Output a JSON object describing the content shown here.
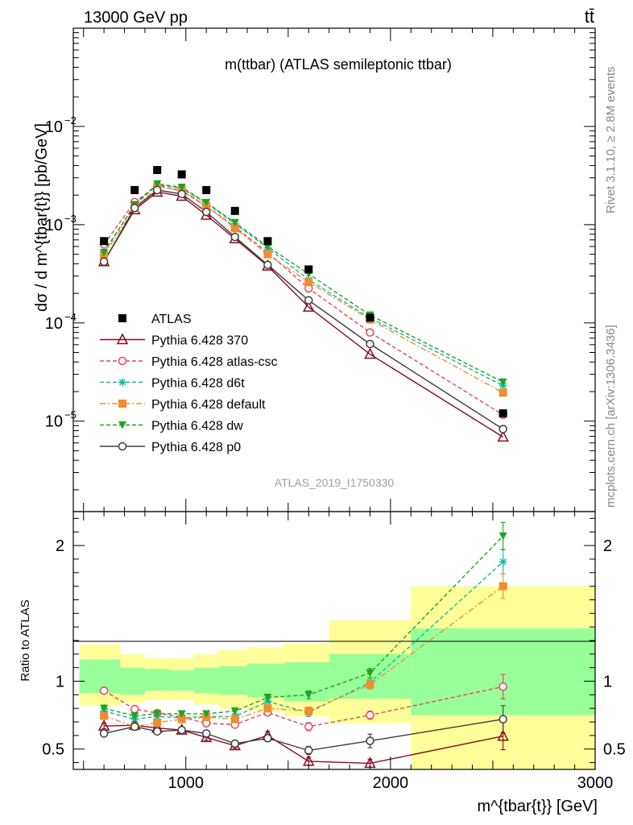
{
  "header": {
    "left": "13000 GeV pp",
    "right": "tt̄"
  },
  "side_text": {
    "rivet": "Rivet 3.1.10, ≥ 2.8M events",
    "mcplots": "mcplots.cern.ch [arXiv:1306.3436]"
  },
  "chart_data": [
    {
      "type": "scatter",
      "title": "m(ttbar) (ATLAS semileptonic ttbar)",
      "ylabel": "dσ / d m^{tbar{t}} [pb/GeV]",
      "xlabel": "m^{tbar{t}} [GeV]",
      "watermark": "ATLAS_2019_I1750330",
      "yscale": "log",
      "xlim": [
        450,
        3000
      ],
      "ylim": [
        1.2e-06,
        0.1
      ],
      "yticks": [
        {
          "value": 0.01,
          "base": "10",
          "exp": "−2"
        },
        {
          "value": 0.001,
          "base": "10",
          "exp": "−3"
        },
        {
          "value": 0.0001,
          "base": "10",
          "exp": "−4"
        },
        {
          "value": 1e-05,
          "base": "10",
          "exp": "−5"
        }
      ],
      "x": [
        600,
        750,
        860,
        980,
        1100,
        1240,
        1400,
        1600,
        1900,
        2550
      ],
      "legend_position": "lower-left",
      "series": [
        {
          "name": "ATLAS",
          "color": "#000000",
          "marker": "square",
          "line": "none",
          "values": [
            0.00068,
            0.00225,
            0.0036,
            0.00325,
            0.00225,
            0.00138,
            0.00068,
            0.00035,
            0.000113,
            1.2e-05
          ]
        },
        {
          "name": "Pythia 6.428 370",
          "color": "#8b0a1e",
          "marker": "open-triangle",
          "line": "solid",
          "values": [
            0.00042,
            0.00142,
            0.00215,
            0.00195,
            0.00125,
            0.00072,
            0.00038,
            0.000145,
            4.8e-05,
            6.9e-06
          ]
        },
        {
          "name": "Pythia 6.428 atlas-csc",
          "color": "#e8455a",
          "marker": "open-circle",
          "line": "dashed",
          "values": [
            0.00063,
            0.0017,
            0.0025,
            0.0022,
            0.00155,
            0.00095,
            0.00052,
            0.000225,
            8e-05,
            1.16e-05
          ]
        },
        {
          "name": "Pythia 6.428 d6t",
          "color": "#14b8a0",
          "marker": "asterisk",
          "line": "dashed",
          "values": [
            0.00053,
            0.00158,
            0.00255,
            0.00235,
            0.00165,
            0.00102,
            0.00058,
            0.000275,
            0.000112,
            2.3e-05
          ]
        },
        {
          "name": "Pythia 6.428 default",
          "color": "#f08c32",
          "marker": "square",
          "line": "dashdot",
          "values": [
            0.00049,
            0.00148,
            0.0024,
            0.00228,
            0.00155,
            0.00092,
            0.0005,
            0.00026,
            0.000108,
            1.95e-05
          ]
        },
        {
          "name": "Pythia 6.428 dw",
          "color": "#1ea51e",
          "marker": "down-triangle",
          "line": "dashed",
          "values": [
            0.00052,
            0.0016,
            0.0026,
            0.0024,
            0.00168,
            0.00105,
            0.0006,
            0.000315,
            0.00012,
            2.5e-05
          ]
        },
        {
          "name": "Pythia 6.428 p0",
          "color": "#3c3c3c",
          "marker": "open-circle",
          "line": "solid",
          "values": [
            0.00042,
            0.00148,
            0.00225,
            0.00205,
            0.00135,
            0.00075,
            0.00039,
            0.00017,
            6.1e-05,
            8.3e-06
          ]
        }
      ]
    },
    {
      "type": "scatter",
      "ylabel": "Ratio to ATLAS",
      "xlabel": "m^{tbar{t}} [GeV]",
      "xlim": [
        450,
        3000
      ],
      "ylim": [
        0.35,
        2.25
      ],
      "yticks": [
        0.5,
        1,
        2
      ],
      "xticks": [
        1000,
        2000,
        3000
      ],
      "x": [
        600,
        750,
        860,
        980,
        1100,
        1240,
        1400,
        1600,
        1900,
        2550
      ],
      "bins": [
        [
          480,
          680
        ],
        [
          680,
          800
        ],
        [
          800,
          920
        ],
        [
          920,
          1040
        ],
        [
          1040,
          1160
        ],
        [
          1160,
          1300
        ],
        [
          1300,
          1480
        ],
        [
          1480,
          1700
        ],
        [
          1700,
          2100
        ],
        [
          2100,
          3000
        ]
      ],
      "band_inner": [
        [
          0.91,
          1.16
        ],
        [
          0.9,
          1.1
        ],
        [
          0.93,
          1.09
        ],
        [
          0.93,
          1.08
        ],
        [
          0.91,
          1.1
        ],
        [
          0.9,
          1.11
        ],
        [
          0.88,
          1.13
        ],
        [
          0.85,
          1.14
        ],
        [
          0.87,
          1.2
        ],
        [
          0.75,
          1.39
        ]
      ],
      "band_outer": [
        [
          0.82,
          1.27
        ],
        [
          0.84,
          1.2
        ],
        [
          0.86,
          1.17
        ],
        [
          0.86,
          1.17
        ],
        [
          0.83,
          1.2
        ],
        [
          0.8,
          1.23
        ],
        [
          0.78,
          1.25
        ],
        [
          0.74,
          1.28
        ],
        [
          0.69,
          1.45
        ],
        [
          0.35,
          1.7
        ]
      ],
      "series": [
        {
          "name": "Pythia 6.428 370",
          "color": "#8b0a1e",
          "marker": "open-triangle",
          "line": "solid",
          "values": [
            0.67,
            0.675,
            0.655,
            0.64,
            0.585,
            0.525,
            0.6,
            0.41,
            0.395,
            0.595
          ],
          "errors": [
            0.02,
            0.02,
            0.02,
            0.02,
            0.02,
            0.02,
            0.03,
            0.03,
            0.03,
            0.1
          ]
        },
        {
          "name": "Pythia 6.428 atlas-csc",
          "color": "#e8455a",
          "marker": "open-circle",
          "line": "dashed",
          "values": [
            0.93,
            0.795,
            0.765,
            0.735,
            0.69,
            0.68,
            0.77,
            0.665,
            0.75,
            0.96
          ],
          "errors": [
            0.025,
            0.02,
            0.02,
            0.02,
            0.02,
            0.02,
            0.025,
            0.03,
            0.03,
            0.09
          ]
        },
        {
          "name": "Pythia 6.428 d6t",
          "color": "#14b8a0",
          "marker": "asterisk",
          "line": "dashed",
          "values": [
            0.78,
            0.72,
            0.74,
            0.73,
            0.74,
            0.74,
            0.85,
            0.77,
            0.99,
            1.88
          ],
          "errors": [
            0.025,
            0.02,
            0.02,
            0.02,
            0.02,
            0.02,
            0.025,
            0.03,
            0.035,
            0.09
          ]
        },
        {
          "name": "Pythia 6.428 default",
          "color": "#f08c32",
          "marker": "square",
          "line": "dashdot",
          "values": [
            0.745,
            0.665,
            0.695,
            0.72,
            0.735,
            0.72,
            0.8,
            0.78,
            0.975,
            1.7
          ],
          "errors": [
            0.025,
            0.02,
            0.02,
            0.02,
            0.02,
            0.02,
            0.025,
            0.03,
            0.035,
            0.09
          ]
        },
        {
          "name": "Pythia 6.428 dw",
          "color": "#1ea51e",
          "marker": "down-triangle",
          "line": "dashed",
          "values": [
            0.8,
            0.745,
            0.76,
            0.76,
            0.76,
            0.78,
            0.88,
            0.9,
            1.06,
            2.07
          ],
          "errors": [
            0.025,
            0.02,
            0.02,
            0.02,
            0.02,
            0.02,
            0.025,
            0.03,
            0.035,
            0.1
          ]
        },
        {
          "name": "Pythia 6.428 p0",
          "color": "#3c3c3c",
          "marker": "open-circle",
          "line": "solid",
          "values": [
            0.615,
            0.665,
            0.63,
            0.64,
            0.615,
            0.54,
            0.58,
            0.49,
            0.56,
            0.72
          ],
          "errors": [
            0.02,
            0.02,
            0.02,
            0.02,
            0.02,
            0.02,
            0.025,
            0.03,
            0.05,
            0.1
          ]
        }
      ]
    }
  ]
}
